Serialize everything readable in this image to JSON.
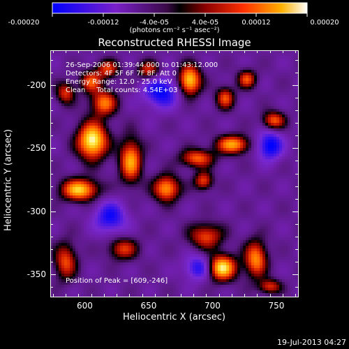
{
  "colorbar": {
    "tick_labels": [
      "-0.00020",
      "-0.00012",
      "-4.0e-05",
      "4.0e-05",
      "0.00012",
      "0.00020"
    ],
    "range": [
      -0.0002,
      0.0002
    ],
    "unit": "(photons cm⁻² s⁻¹ asec⁻²)"
  },
  "chart_data": {
    "type": "heatmap",
    "title": "Reconstructed RHESSI Image",
    "xlabel": "Heliocentric X (arcsec)",
    "ylabel": "Heliocentric Y (arcsec)",
    "xlim": [
      573,
      767
    ],
    "ylim": [
      -368,
      -172
    ],
    "x_ticks": [
      600,
      650,
      700,
      750
    ],
    "y_ticks": [
      -200,
      -250,
      -300,
      -350
    ],
    "peak": {
      "x": 609,
      "y": -246
    },
    "sources": [
      {
        "x": 606,
        "y": -244,
        "sx": 8,
        "sy": 10,
        "a": 1.0
      },
      {
        "x": 615,
        "y": -214,
        "sx": 7,
        "sy": 7,
        "a": 0.65
      },
      {
        "x": 605,
        "y": -197,
        "sx": 6,
        "sy": 6,
        "a": 0.55
      },
      {
        "x": 585,
        "y": -206,
        "sx": 5,
        "sy": 6,
        "a": 0.5
      },
      {
        "x": 618,
        "y": -187,
        "sx": 6,
        "sy": 5,
        "a": 0.5
      },
      {
        "x": 650,
        "y": -188,
        "sx": 6,
        "sy": 5,
        "a": 0.5
      },
      {
        "x": 682,
        "y": -196,
        "sx": 6,
        "sy": 8,
        "a": 0.9
      },
      {
        "x": 710,
        "y": -210,
        "sx": 5,
        "sy": 6,
        "a": 0.55
      },
      {
        "x": 727,
        "y": -195,
        "sx": 5,
        "sy": 5,
        "a": 0.55
      },
      {
        "x": 748,
        "y": -228,
        "sx": 6,
        "sy": 5,
        "a": 0.6
      },
      {
        "x": 716,
        "y": -247,
        "sx": 9,
        "sy": 5,
        "a": 0.75
      },
      {
        "x": 688,
        "y": -258,
        "sx": 9,
        "sy": 5,
        "a": 0.6
      },
      {
        "x": 636,
        "y": -260,
        "sx": 6,
        "sy": 12,
        "a": 0.75
      },
      {
        "x": 596,
        "y": -283,
        "sx": 10,
        "sy": 6,
        "a": 0.85
      },
      {
        "x": 664,
        "y": -282,
        "sx": 7,
        "sy": 7,
        "a": 0.75
      },
      {
        "x": 693,
        "y": -276,
        "sx": 5,
        "sy": 5,
        "a": 0.55
      },
      {
        "x": 695,
        "y": -320,
        "sx": 9,
        "sy": 7,
        "a": 0.55
      },
      {
        "x": 707,
        "y": -345,
        "sx": 8,
        "sy": 7,
        "a": 0.95
      },
      {
        "x": 734,
        "y": -338,
        "sx": 6,
        "sy": 10,
        "a": 0.7
      },
      {
        "x": 630,
        "y": -330,
        "sx": 8,
        "sy": 6,
        "a": 0.5
      },
      {
        "x": 585,
        "y": -340,
        "sx": 6,
        "sy": 10,
        "a": 0.55
      },
      {
        "x": 745,
        "y": -360,
        "sx": 6,
        "sy": 4,
        "a": 0.5
      },
      {
        "x": 660,
        "y": -205,
        "sx": -10,
        "sy": 9,
        "a": -0.55
      },
      {
        "x": 745,
        "y": -248,
        "sx": -7,
        "sy": 8,
        "a": -0.6
      },
      {
        "x": 690,
        "y": -345,
        "sx": -8,
        "sy": 7,
        "a": -0.5
      },
      {
        "x": 620,
        "y": -305,
        "sx": -9,
        "sy": 9,
        "a": -0.5
      }
    ]
  },
  "info": {
    "line1": "26-Sep-2006 01:39:44.000 to 01:43:12.000",
    "line2": "Detectors: 4F 5F 6F 7F 8F, Att 0",
    "line3": "Energy Range: 12.0 - 25.0 keV",
    "line4": "Clean     Total counts: 4.54E+03",
    "peak_label": "Position of Peak = [609,-246]"
  },
  "footer": "19-Jul-2013 04:27"
}
